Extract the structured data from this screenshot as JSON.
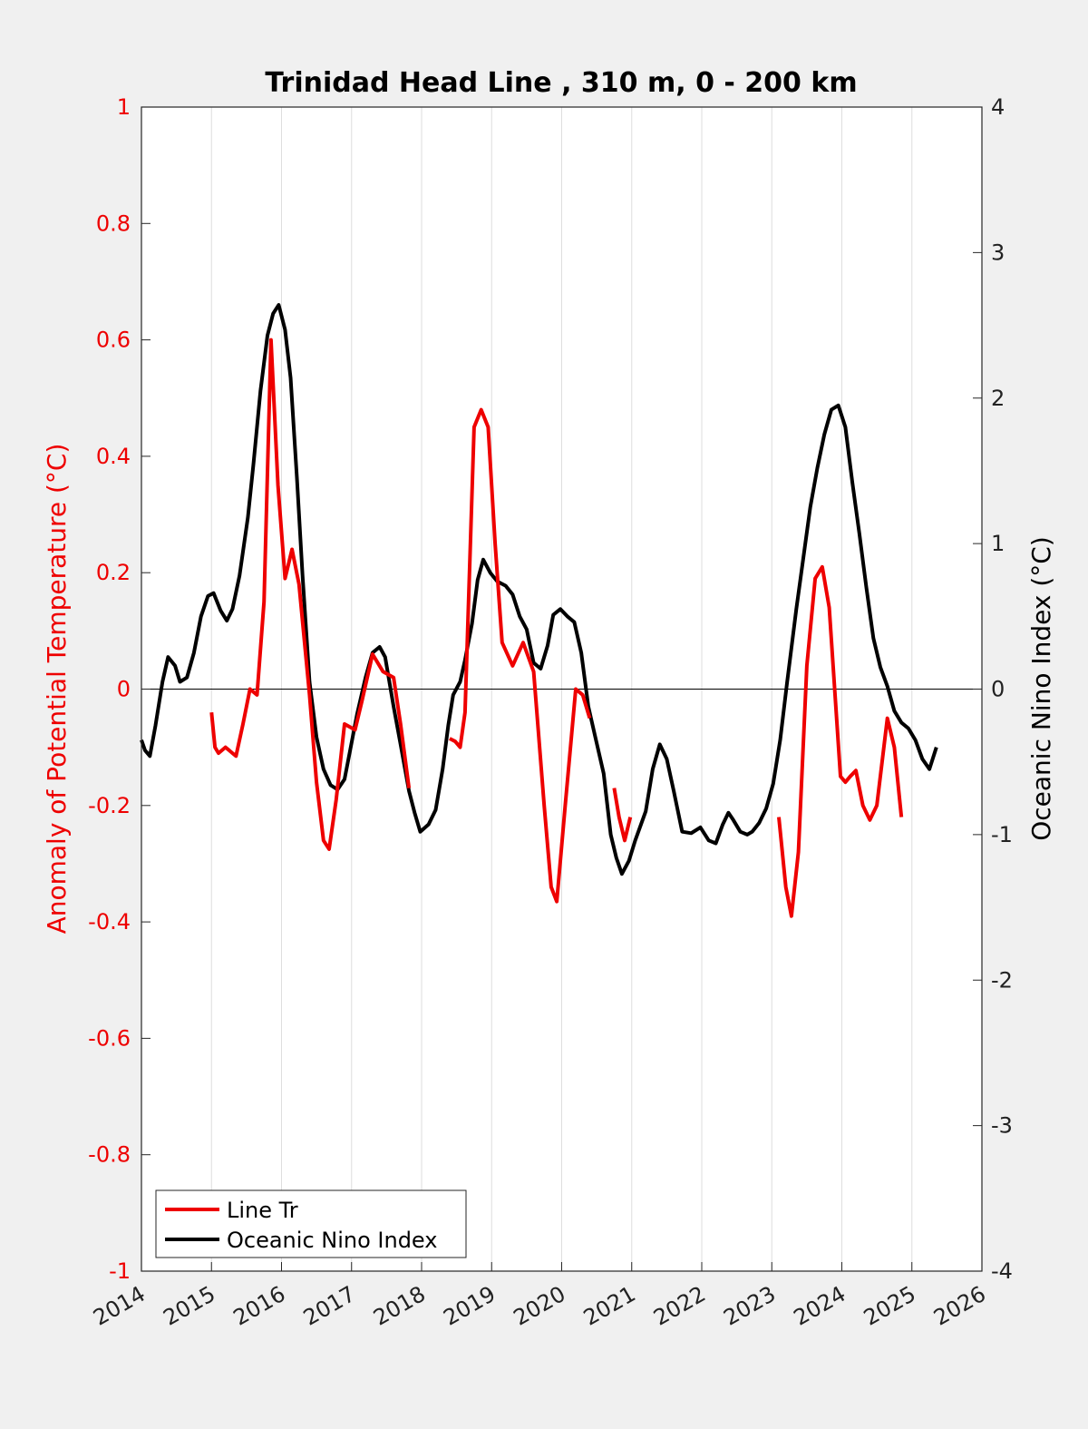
{
  "chart_data": {
    "type": "line",
    "title": "Trinidad Head Line , 310 m, 0 - 200 km",
    "xlabel": "",
    "ylabel_left": "Anomaly of Potential Temperature (°C)",
    "ylabel_right": "Oceanic Nino Index (°C)",
    "xlim": [
      2014,
      2026
    ],
    "ylim_left": [
      -1,
      1
    ],
    "ylim_right": [
      -4,
      4
    ],
    "x_ticks": [
      "2014",
      "2015",
      "2016",
      "2017",
      "2018",
      "2019",
      "2020",
      "2021",
      "2022",
      "2023",
      "2024",
      "2025",
      "2026"
    ],
    "y_ticks_left": [
      "-1",
      "-0.8",
      "-0.6",
      "-0.4",
      "-0.2",
      "0",
      "0.2",
      "0.4",
      "0.6",
      "0.8",
      "1"
    ],
    "y_ticks_right": [
      "-4",
      "-3",
      "-2",
      "-1",
      "0",
      "1",
      "2",
      "3",
      "4"
    ],
    "grid": "x-only",
    "legend_position": "bottom-left",
    "colors": {
      "red_series": "#ee0000",
      "black_series": "#000000",
      "left_axis": "#ee0000",
      "background": "#f0f0f0",
      "plot_bg": "#ffffff"
    },
    "series": [
      {
        "name": "Line Tr",
        "axis": "left",
        "color": "#ee0000",
        "segments": [
          [
            [
              2015.0,
              -0.04
            ],
            [
              2015.05,
              -0.1
            ],
            [
              2015.1,
              -0.11
            ],
            [
              2015.2,
              -0.1
            ],
            [
              2015.3,
              -0.11
            ],
            [
              2015.35,
              -0.115
            ],
            [
              2015.45,
              -0.06
            ],
            [
              2015.55,
              0.0
            ],
            [
              2015.65,
              -0.01
            ],
            [
              2015.75,
              0.15
            ],
            [
              2015.85,
              0.6
            ],
            [
              2015.95,
              0.35
            ],
            [
              2016.05,
              0.19
            ],
            [
              2016.15,
              0.24
            ],
            [
              2016.25,
              0.18
            ],
            [
              2016.4,
              -0.01
            ],
            [
              2016.5,
              -0.16
            ],
            [
              2016.6,
              -0.26
            ],
            [
              2016.68,
              -0.275
            ],
            [
              2016.78,
              -0.19
            ],
            [
              2016.9,
              -0.06
            ],
            [
              2017.05,
              -0.07
            ],
            [
              2017.15,
              -0.02
            ],
            [
              2017.3,
              0.06
            ],
            [
              2017.45,
              0.03
            ],
            [
              2017.6,
              0.02
            ],
            [
              2017.7,
              -0.06
            ],
            [
              2017.82,
              -0.17
            ]
          ],
          [
            [
              2018.4,
              -0.085
            ],
            [
              2018.48,
              -0.09
            ],
            [
              2018.55,
              -0.1
            ],
            [
              2018.62,
              -0.04
            ],
            [
              2018.75,
              0.45
            ],
            [
              2018.85,
              0.48
            ],
            [
              2018.95,
              0.45
            ],
            [
              2019.05,
              0.25
            ],
            [
              2019.15,
              0.08
            ],
            [
              2019.3,
              0.04
            ],
            [
              2019.45,
              0.08
            ],
            [
              2019.6,
              0.03
            ],
            [
              2019.75,
              -0.2
            ],
            [
              2019.85,
              -0.34
            ],
            [
              2019.93,
              -0.365
            ],
            [
              2020.05,
              -0.2
            ],
            [
              2020.2,
              0.0
            ],
            [
              2020.3,
              -0.01
            ],
            [
              2020.4,
              -0.05
            ]
          ],
          [
            [
              2020.75,
              -0.17
            ],
            [
              2020.82,
              -0.22
            ],
            [
              2020.9,
              -0.26
            ],
            [
              2020.98,
              -0.22
            ]
          ],
          [
            [
              2023.1,
              -0.22
            ],
            [
              2023.2,
              -0.34
            ],
            [
              2023.28,
              -0.39
            ],
            [
              2023.38,
              -0.28
            ],
            [
              2023.5,
              0.04
            ],
            [
              2023.62,
              0.19
            ],
            [
              2023.72,
              0.21
            ],
            [
              2023.82,
              0.14
            ],
            [
              2023.98,
              -0.15
            ],
            [
              2024.05,
              -0.16
            ],
            [
              2024.12,
              -0.15
            ],
            [
              2024.2,
              -0.14
            ],
            [
              2024.3,
              -0.2
            ],
            [
              2024.4,
              -0.225
            ],
            [
              2024.5,
              -0.2
            ],
            [
              2024.65,
              -0.05
            ],
            [
              2024.75,
              -0.1
            ],
            [
              2024.85,
              -0.22
            ]
          ]
        ]
      },
      {
        "name": "Oceanic Nino Index",
        "axis": "right",
        "color": "#000000",
        "segments": [
          [
            [
              2014.0,
              -0.35
            ],
            [
              2014.05,
              -0.42
            ],
            [
              2014.12,
              -0.46
            ],
            [
              2014.2,
              -0.25
            ],
            [
              2014.3,
              0.05
            ],
            [
              2014.38,
              0.22
            ],
            [
              2014.48,
              0.16
            ],
            [
              2014.55,
              0.05
            ],
            [
              2014.65,
              0.08
            ],
            [
              2014.75,
              0.25
            ],
            [
              2014.85,
              0.5
            ],
            [
              2014.95,
              0.64
            ],
            [
              2015.03,
              0.66
            ],
            [
              2015.13,
              0.54
            ],
            [
              2015.22,
              0.47
            ],
            [
              2015.3,
              0.55
            ],
            [
              2015.4,
              0.78
            ],
            [
              2015.52,
              1.18
            ],
            [
              2015.6,
              1.55
            ],
            [
              2015.7,
              2.05
            ],
            [
              2015.8,
              2.43
            ],
            [
              2015.88,
              2.58
            ],
            [
              2015.96,
              2.64
            ],
            [
              2016.05,
              2.47
            ],
            [
              2016.13,
              2.14
            ],
            [
              2016.22,
              1.45
            ],
            [
              2016.3,
              0.78
            ],
            [
              2016.4,
              0.05
            ],
            [
              2016.5,
              -0.33
            ],
            [
              2016.6,
              -0.55
            ],
            [
              2016.7,
              -0.66
            ],
            [
              2016.8,
              -0.69
            ],
            [
              2016.9,
              -0.62
            ],
            [
              2016.98,
              -0.42
            ],
            [
              2017.08,
              -0.17
            ],
            [
              2017.2,
              0.08
            ],
            [
              2017.3,
              0.25
            ],
            [
              2017.4,
              0.29
            ],
            [
              2017.48,
              0.22
            ],
            [
              2017.6,
              -0.12
            ],
            [
              2017.7,
              -0.38
            ],
            [
              2017.82,
              -0.7
            ],
            [
              2017.9,
              -0.85
            ],
            [
              2017.98,
              -0.98
            ],
            [
              2018.1,
              -0.93
            ],
            [
              2018.2,
              -0.83
            ],
            [
              2018.3,
              -0.55
            ],
            [
              2018.38,
              -0.25
            ],
            [
              2018.45,
              -0.04
            ],
            [
              2018.55,
              0.05
            ],
            [
              2018.62,
              0.2
            ],
            [
              2018.72,
              0.45
            ],
            [
              2018.8,
              0.75
            ],
            [
              2018.88,
              0.89
            ],
            [
              2018.98,
              0.8
            ],
            [
              2019.08,
              0.74
            ],
            [
              2019.2,
              0.71
            ],
            [
              2019.3,
              0.65
            ],
            [
              2019.4,
              0.5
            ],
            [
              2019.5,
              0.41
            ],
            [
              2019.6,
              0.18
            ],
            [
              2019.7,
              0.14
            ],
            [
              2019.8,
              0.3
            ],
            [
              2019.88,
              0.51
            ],
            [
              2019.98,
              0.55
            ],
            [
              2020.08,
              0.5
            ],
            [
              2020.18,
              0.46
            ],
            [
              2020.28,
              0.25
            ],
            [
              2020.38,
              -0.12
            ],
            [
              2020.48,
              -0.33
            ],
            [
              2020.6,
              -0.58
            ],
            [
              2020.7,
              -1.0
            ],
            [
              2020.78,
              -1.16
            ],
            [
              2020.86,
              -1.27
            ],
            [
              2020.96,
              -1.18
            ],
            [
              2021.05,
              -1.04
            ],
            [
              2021.2,
              -0.84
            ],
            [
              2021.3,
              -0.55
            ],
            [
              2021.4,
              -0.38
            ],
            [
              2021.5,
              -0.48
            ],
            [
              2021.6,
              -0.7
            ],
            [
              2021.72,
              -0.98
            ],
            [
              2021.85,
              -0.99
            ],
            [
              2021.98,
              -0.95
            ],
            [
              2022.1,
              -1.04
            ],
            [
              2022.2,
              -1.06
            ],
            [
              2022.3,
              -0.93
            ],
            [
              2022.38,
              -0.85
            ],
            [
              2022.45,
              -0.9
            ],
            [
              2022.55,
              -0.98
            ],
            [
              2022.65,
              -1.0
            ],
            [
              2022.72,
              -0.98
            ],
            [
              2022.82,
              -0.92
            ],
            [
              2022.92,
              -0.82
            ],
            [
              2023.02,
              -0.65
            ],
            [
              2023.12,
              -0.35
            ],
            [
              2023.22,
              0.05
            ],
            [
              2023.35,
              0.55
            ],
            [
              2023.45,
              0.9
            ],
            [
              2023.55,
              1.25
            ],
            [
              2023.65,
              1.52
            ],
            [
              2023.75,
              1.75
            ],
            [
              2023.85,
              1.92
            ],
            [
              2023.95,
              1.95
            ],
            [
              2024.05,
              1.8
            ],
            [
              2024.15,
              1.42
            ],
            [
              2024.25,
              1.07
            ],
            [
              2024.35,
              0.7
            ],
            [
              2024.45,
              0.35
            ],
            [
              2024.55,
              0.15
            ],
            [
              2024.65,
              0.02
            ],
            [
              2024.75,
              -0.15
            ],
            [
              2024.85,
              -0.23
            ],
            [
              2024.95,
              -0.27
            ],
            [
              2025.05,
              -0.35
            ],
            [
              2025.15,
              -0.48
            ],
            [
              2025.25,
              -0.55
            ],
            [
              2025.35,
              -0.4
            ]
          ]
        ]
      }
    ]
  }
}
